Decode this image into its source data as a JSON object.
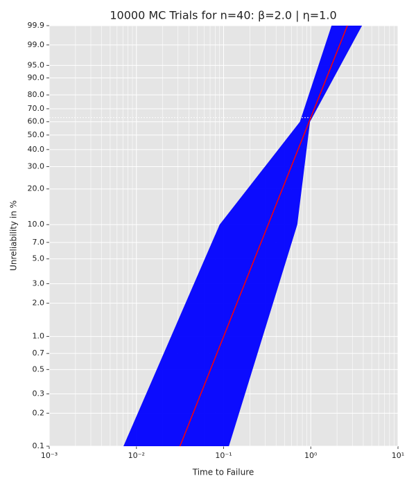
{
  "chart_data": {
    "type": "weibull-probability",
    "title": "10000 MC Trials for n=40: β=2.0 | η=1.0",
    "x_label": "Time to Failure",
    "y_label": "Unreliability in %",
    "xlim": [
      0.001,
      10
    ],
    "xticks": [
      {
        "value": 0.001,
        "label": "10⁻³"
      },
      {
        "value": 0.01,
        "label": "10⁻²"
      },
      {
        "value": 0.1,
        "label": "10⁻¹"
      },
      {
        "value": 1,
        "label": "10⁰"
      },
      {
        "value": 10,
        "label": "10¹"
      }
    ],
    "ylim": [
      0.1,
      99.9
    ],
    "yticks": [
      0.1,
      0.2,
      0.3,
      0.5,
      0.7,
      {
        "value": 1,
        "label": "1.0"
      },
      {
        "value": 2,
        "label": "2.0"
      },
      {
        "value": 3,
        "label": "3.0"
      },
      {
        "value": 5,
        "label": "5.0"
      },
      {
        "value": 7,
        "label": "7.0"
      },
      {
        "value": 10,
        "label": "10.0"
      },
      {
        "value": 20,
        "label": "20.0"
      },
      {
        "value": 30,
        "label": "30.0"
      },
      {
        "value": 40,
        "label": "40.0"
      },
      {
        "value": 50,
        "label": "50.0"
      },
      {
        "value": 60,
        "label": "60.0"
      },
      {
        "value": 70,
        "label": "70.0"
      },
      {
        "value": 80,
        "label": "80.0"
      },
      {
        "value": 90,
        "label": "90.0"
      },
      {
        "value": 95,
        "label": "95.0"
      },
      {
        "value": 99,
        "label": "99.0"
      },
      99.9
    ],
    "log_x": true,
    "grid": true,
    "reference_line": 63.2,
    "band": {
      "color": "#0000ff",
      "y": [
        0.1,
        10,
        60,
        99.9
      ],
      "x_low": [
        0.0071,
        0.09,
        0.75,
        1.73
      ],
      "x_high": [
        0.115,
        0.7,
        0.98,
        3.87
      ]
    },
    "fit_line": {
      "color": "#ff0000",
      "x": [
        0.0316,
        2.628
      ],
      "y": [
        0.1,
        99.9
      ]
    }
  }
}
